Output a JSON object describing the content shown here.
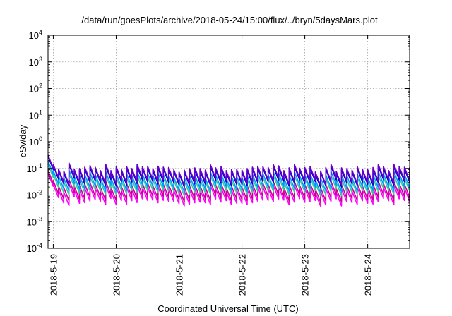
{
  "chart_data": {
    "type": "line",
    "title": "/data/run/goesPlots/archive/2018-05-24/15:00/flux/../bryn/5daysMars.plot",
    "xlabel": "Coordinated Universal Time (UTC)",
    "ylabel": "cSv/day",
    "y_scale": "log",
    "ylim": [
      0.0001,
      10000
    ],
    "y_ticks": [
      {
        "value": 0.0001,
        "base": "10",
        "exp": "-4"
      },
      {
        "value": 0.001,
        "base": "10",
        "exp": "-3"
      },
      {
        "value": 0.01,
        "base": "10",
        "exp": "-2"
      },
      {
        "value": 0.1,
        "base": "10",
        "exp": "-1"
      },
      {
        "value": 1,
        "base": "10",
        "exp": "0"
      },
      {
        "value": 10,
        "base": "10",
        "exp": "1"
      },
      {
        "value": 100,
        "base": "10",
        "exp": "2"
      },
      {
        "value": 1000,
        "base": "10",
        "exp": "3"
      },
      {
        "value": 10000,
        "base": "10",
        "exp": "4"
      }
    ],
    "xlim": [
      "2018-05-18T22:00",
      "2018-05-24T16:00"
    ],
    "x_ticks": [
      "2018-5-19",
      "2018-5-20",
      "2018-5-21",
      "2018-5-22",
      "2018-5-23",
      "2018-5-24"
    ],
    "grid": true,
    "series_sampling_hours": 2,
    "series": [
      {
        "color": "#ff00ff",
        "values": [
          0.021,
          0.008,
          0.005,
          0.004,
          0.0085,
          0.0049,
          0.0051,
          0.0059,
          0.0066,
          0.0059,
          0.0043,
          0.0074,
          0.0043,
          0.0062,
          0.0046,
          0.0061,
          0.0052,
          0.0072,
          0.0062,
          0.0063,
          0.0051,
          0.0063,
          0.0058,
          0.0056,
          0.0047,
          0.0039,
          0.0045,
          0.0051,
          0.0054,
          0.0051,
          0.0044,
          0.0071,
          0.0054,
          0.0061,
          0.0043,
          0.0049,
          0.0048,
          0.0044,
          0.0051,
          0.0059,
          0.0063,
          0.0062,
          0.0056,
          0.0071,
          0.0064,
          0.0043,
          0.0054,
          0.0073,
          0.0053,
          0.0056,
          0.0062,
          0.0038,
          0.0042,
          0.0056,
          0.0072,
          0.0039,
          0.0055,
          0.0051,
          0.0044,
          0.0061,
          0.0049,
          0.0046,
          0.0057,
          0.0075,
          0.0061,
          0.0043,
          0.0072,
          0.0062,
          0.0058,
          0.0057
        ]
      },
      {
        "color": "#cc0099",
        "values": [
          0.027,
          0.011,
          0.007,
          0.006,
          0.012,
          0.0068,
          0.0072,
          0.0083,
          0.0092,
          0.0083,
          0.0061,
          0.0104,
          0.0061,
          0.0087,
          0.0065,
          0.0086,
          0.0073,
          0.0101,
          0.0087,
          0.0088,
          0.0071,
          0.0088,
          0.0081,
          0.0078,
          0.0066,
          0.0055,
          0.0063,
          0.0071,
          0.0076,
          0.0071,
          0.0062,
          0.0099,
          0.0076,
          0.0086,
          0.006,
          0.0069,
          0.0067,
          0.0062,
          0.0071,
          0.0083,
          0.0088,
          0.0087,
          0.0078,
          0.0099,
          0.009,
          0.006,
          0.0076,
          0.0102,
          0.0074,
          0.0078,
          0.0087,
          0.0053,
          0.0059,
          0.0078,
          0.0101,
          0.0055,
          0.0077,
          0.0071,
          0.0062,
          0.0085,
          0.0069,
          0.0064,
          0.008,
          0.0105,
          0.0085,
          0.006,
          0.0101,
          0.0087,
          0.0081,
          0.008
        ]
      },
      {
        "color": "#33cc99",
        "values": [
          0.045,
          0.019,
          0.012,
          0.01,
          0.02,
          0.0117,
          0.0122,
          0.0141,
          0.0158,
          0.0141,
          0.0103,
          0.0177,
          0.0103,
          0.0148,
          0.011,
          0.0146,
          0.0124,
          0.0172,
          0.0148,
          0.015,
          0.0122,
          0.015,
          0.0139,
          0.0134,
          0.0112,
          0.0093,
          0.0108,
          0.0122,
          0.0129,
          0.0122,
          0.0105,
          0.017,
          0.0129,
          0.0146,
          0.0103,
          0.0117,
          0.0115,
          0.0105,
          0.0122,
          0.0141,
          0.015,
          0.0148,
          0.0134,
          0.017,
          0.0153,
          0.0103,
          0.0129,
          0.0175,
          0.0127,
          0.0134,
          0.0148,
          0.0091,
          0.01,
          0.0134,
          0.0172,
          0.0093,
          0.0131,
          0.0122,
          0.0105,
          0.0146,
          0.0117,
          0.011,
          0.0136,
          0.0179,
          0.0146,
          0.0103,
          0.0172,
          0.0148,
          0.0139,
          0.0136
        ]
      },
      {
        "color": "#0099ff",
        "values": [
          0.06,
          0.026,
          0.017,
          0.014,
          0.027,
          0.016,
          0.017,
          0.019,
          0.022,
          0.019,
          0.014,
          0.024,
          0.014,
          0.02,
          0.015,
          0.02,
          0.017,
          0.024,
          0.02,
          0.021,
          0.017,
          0.021,
          0.019,
          0.018,
          0.015,
          0.013,
          0.015,
          0.017,
          0.018,
          0.017,
          0.014,
          0.023,
          0.018,
          0.02,
          0.014,
          0.016,
          0.016,
          0.014,
          0.017,
          0.019,
          0.021,
          0.02,
          0.018,
          0.023,
          0.021,
          0.014,
          0.018,
          0.024,
          0.017,
          0.018,
          0.02,
          0.012,
          0.014,
          0.018,
          0.024,
          0.013,
          0.018,
          0.017,
          0.014,
          0.02,
          0.016,
          0.015,
          0.019,
          0.025,
          0.02,
          0.014,
          0.024,
          0.02,
          0.019,
          0.019
        ]
      },
      {
        "color": "#0000cc",
        "values": [
          0.09,
          0.04,
          0.026,
          0.021,
          0.043,
          0.025,
          0.026,
          0.03,
          0.034,
          0.03,
          0.022,
          0.038,
          0.022,
          0.032,
          0.024,
          0.031,
          0.027,
          0.037,
          0.032,
          0.032,
          0.026,
          0.032,
          0.03,
          0.029,
          0.024,
          0.02,
          0.023,
          0.026,
          0.028,
          0.026,
          0.023,
          0.036,
          0.028,
          0.031,
          0.022,
          0.025,
          0.025,
          0.023,
          0.026,
          0.03,
          0.032,
          0.032,
          0.029,
          0.036,
          0.033,
          0.022,
          0.028,
          0.037,
          0.027,
          0.029,
          0.032,
          0.019,
          0.022,
          0.029,
          0.037,
          0.02,
          0.028,
          0.026,
          0.023,
          0.031,
          0.025,
          0.024,
          0.029,
          0.038,
          0.031,
          0.022,
          0.037,
          0.032,
          0.03,
          0.029
        ]
      },
      {
        "color": "#6600cc",
        "values": [
          0.1,
          0.045,
          0.03,
          0.025,
          0.05,
          0.029,
          0.031,
          0.035,
          0.04,
          0.035,
          0.026,
          0.045,
          0.026,
          0.037,
          0.028,
          0.037,
          0.031,
          0.044,
          0.037,
          0.038,
          0.031,
          0.038,
          0.035,
          0.034,
          0.028,
          0.023,
          0.027,
          0.031,
          0.033,
          0.031,
          0.027,
          0.043,
          0.033,
          0.037,
          0.026,
          0.029,
          0.029,
          0.027,
          0.031,
          0.035,
          0.038,
          0.037,
          0.034,
          0.043,
          0.039,
          0.026,
          0.033,
          0.044,
          0.032,
          0.034,
          0.037,
          0.023,
          0.025,
          0.034,
          0.044,
          0.024,
          0.033,
          0.031,
          0.027,
          0.037,
          0.029,
          0.028,
          0.034,
          0.045,
          0.037,
          0.026,
          0.044,
          0.037,
          0.035,
          0.034
        ]
      }
    ]
  }
}
